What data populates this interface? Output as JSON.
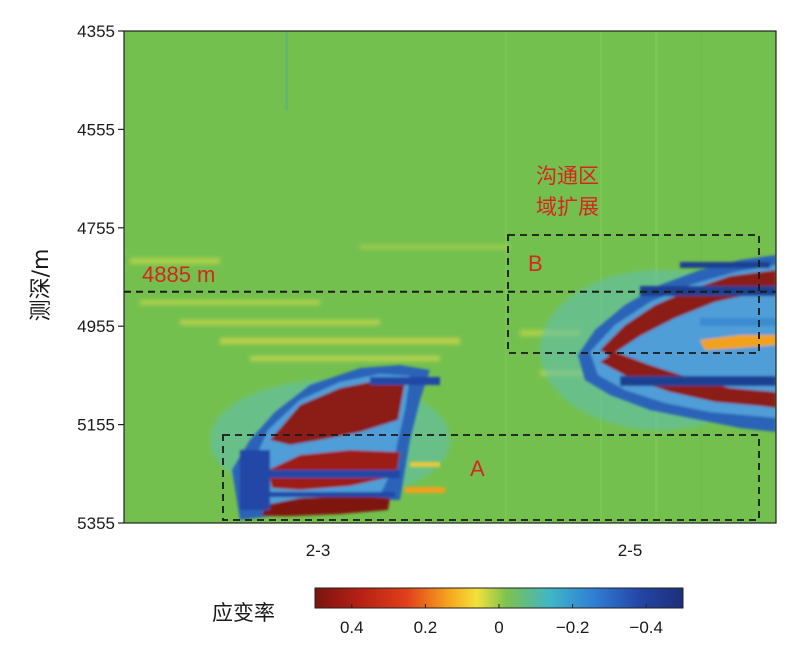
{
  "chart_data": {
    "type": "heatmap",
    "ylabel": "测深/m",
    "yticks": [
      4355,
      4555,
      4755,
      4955,
      5155,
      5355
    ],
    "ylim": [
      4355,
      5355
    ],
    "y_inverted": true,
    "xtick_labels": [
      "2-3",
      "2-5"
    ],
    "annotations": {
      "depth_line_label": "4885 m",
      "depth_line_value": 4885,
      "region_a_label": "A",
      "region_b_label": "B",
      "note_line1": "沟通区",
      "note_line2": "域扩展"
    },
    "colorbar": {
      "title": "应变率",
      "ticks": [
        "0.4",
        "0.2",
        "0",
        "−0.2",
        "−0.4"
      ],
      "range": [
        0.5,
        -0.5
      ]
    },
    "colors": {
      "background": "#74c04f",
      "positive": "#8b1a12",
      "negative": "#1f3f91",
      "annotation": "#d7261e"
    }
  }
}
